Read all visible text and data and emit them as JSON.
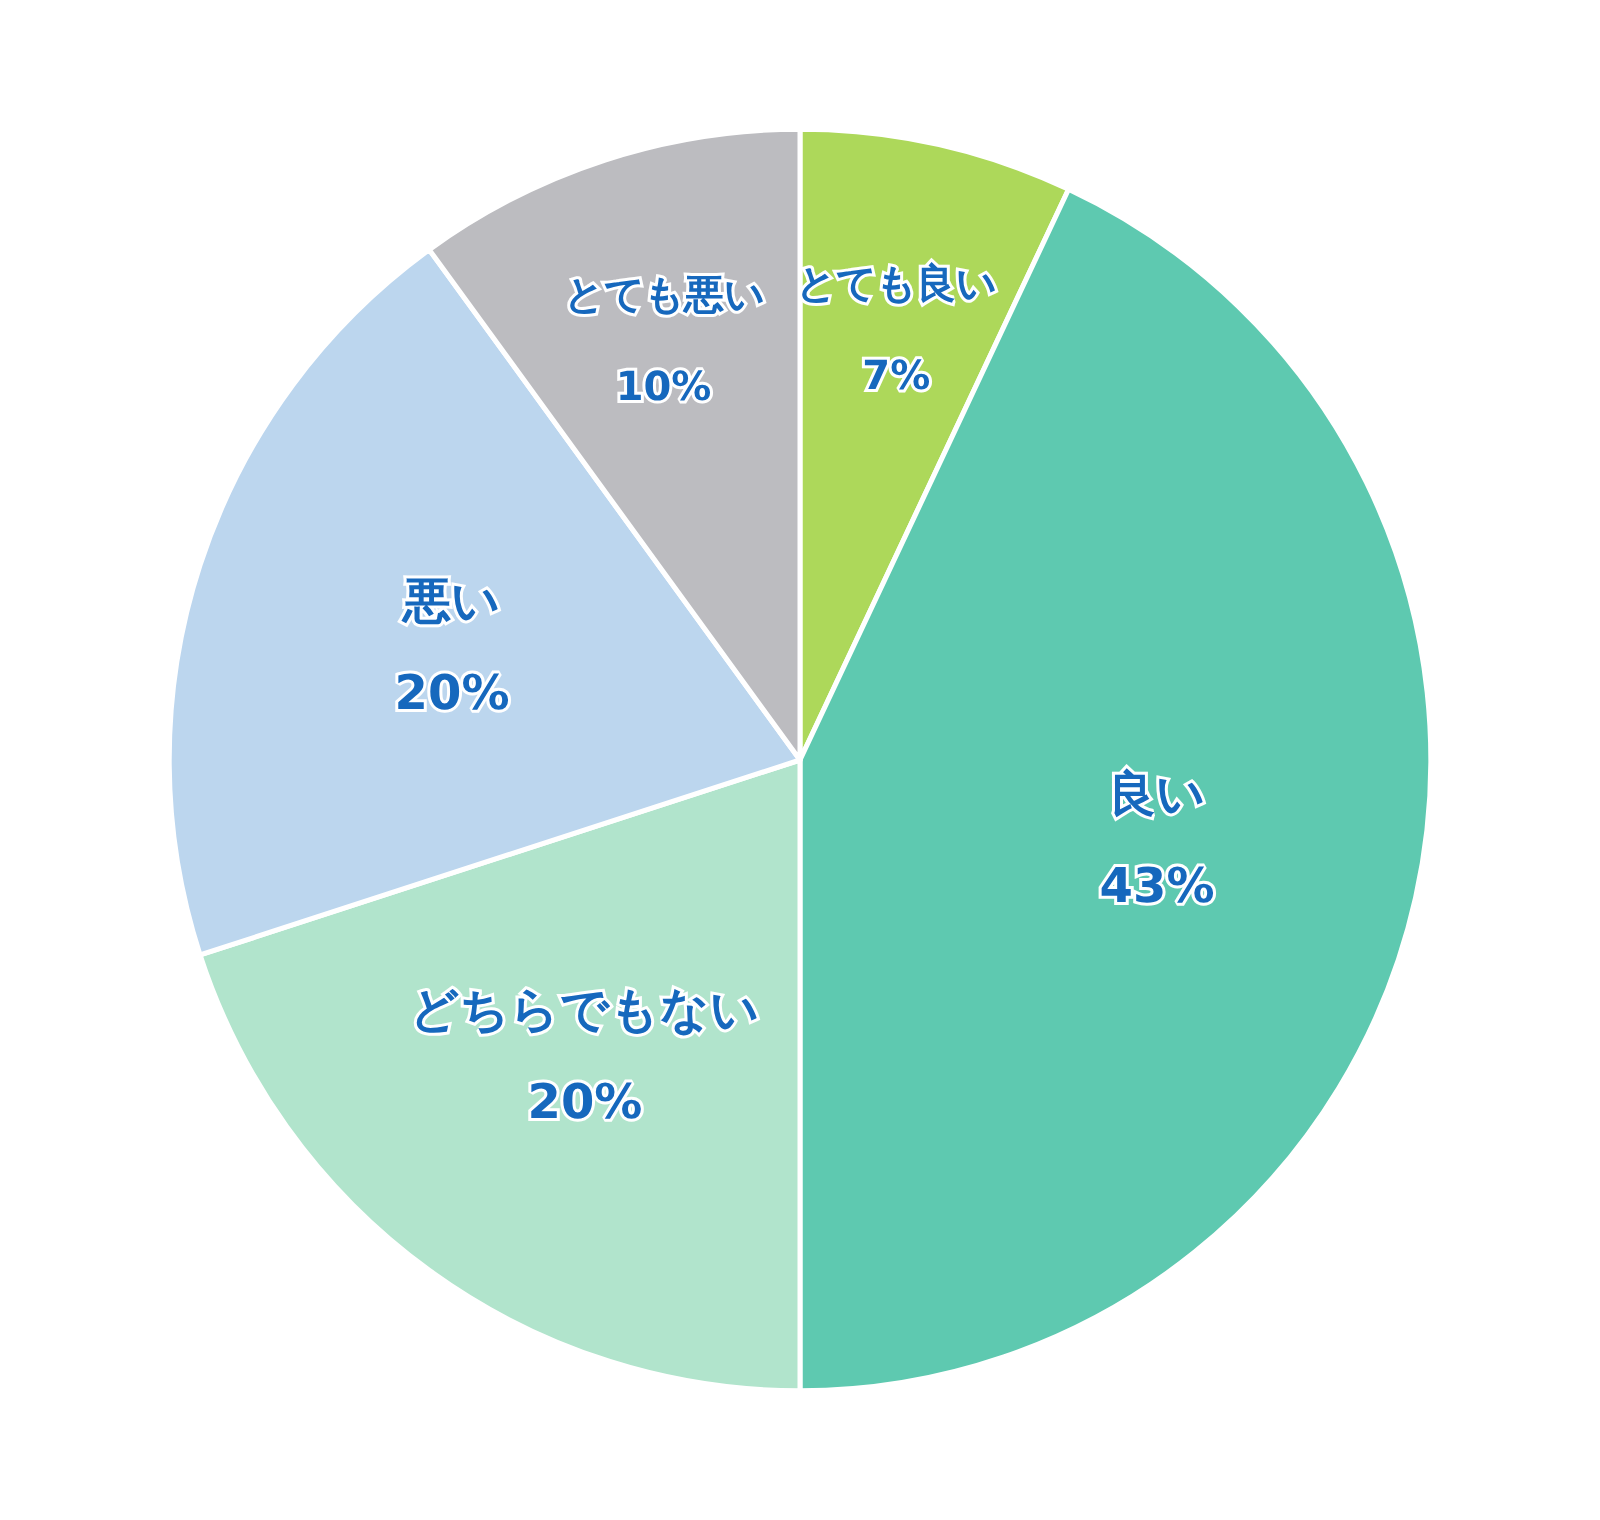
{
  "chart_data": {
    "type": "pie",
    "categories": [
      "とても良い",
      "良い",
      "どちらでもない",
      "悪い",
      "とても悪い"
    ],
    "values": [
      7,
      43,
      20,
      20,
      10
    ],
    "value_labels": [
      "7%",
      "43%",
      "20%",
      "20%",
      "10%"
    ],
    "colors": [
      "#add85a",
      "#5ec9b0",
      "#b1e4cc",
      "#bcd6ee",
      "#bcbcc0"
    ],
    "legend": false
  }
}
